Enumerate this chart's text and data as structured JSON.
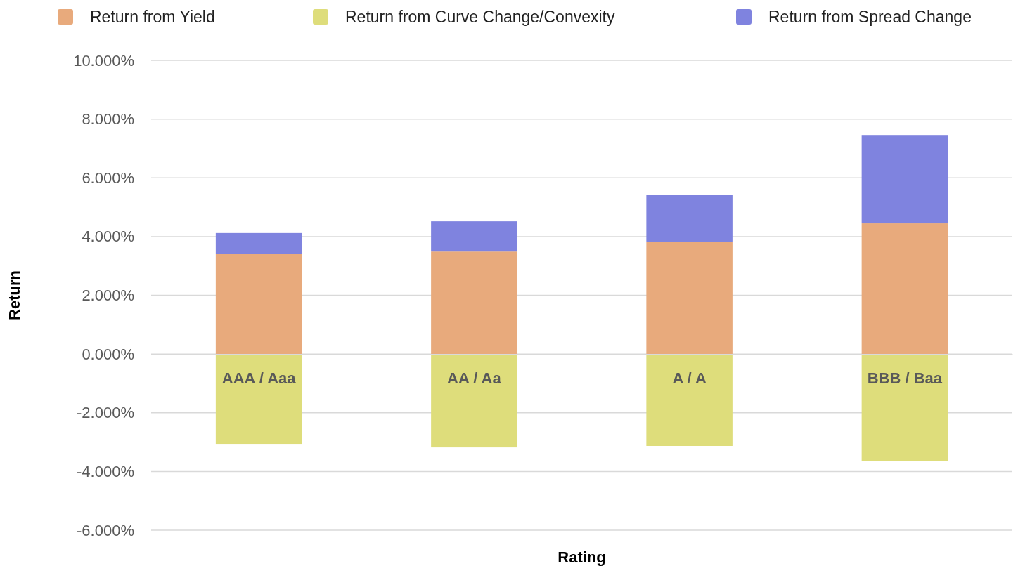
{
  "chart_data": {
    "type": "bar",
    "stacked": true,
    "xlabel": "Rating",
    "ylabel": "Return",
    "categories": [
      "AAA / Aaa",
      "AA / Aa",
      "A / A",
      "BBB / Baa"
    ],
    "series": [
      {
        "name": "Return from Yield",
        "color": "#e8aa7c",
        "values": [
          3.4,
          3.49,
          3.83,
          4.45
        ]
      },
      {
        "name": "Return from Curve Change/Convexity",
        "color": "#dedd7b",
        "values": [
          -3.06,
          -3.18,
          -3.13,
          -3.64
        ]
      },
      {
        "name": "Return from Spread Change",
        "color": "#7f83df",
        "values": [
          0.72,
          1.03,
          1.58,
          3.01
        ]
      }
    ],
    "ylim": [
      -6,
      10
    ],
    "yticks": [
      {
        "value": -6,
        "label": "-6.000%"
      },
      {
        "value": -4,
        "label": "-4.000%"
      },
      {
        "value": -2,
        "label": "-2.000%"
      },
      {
        "value": 0,
        "label": "0.000%"
      },
      {
        "value": 2,
        "label": "2.000%"
      },
      {
        "value": 4,
        "label": "4.000%"
      },
      {
        "value": 6,
        "label": "6.000%"
      },
      {
        "value": 8,
        "label": "8.000%"
      },
      {
        "value": 10,
        "label": "10.000%"
      }
    ],
    "grid": "y",
    "legend": "top"
  }
}
